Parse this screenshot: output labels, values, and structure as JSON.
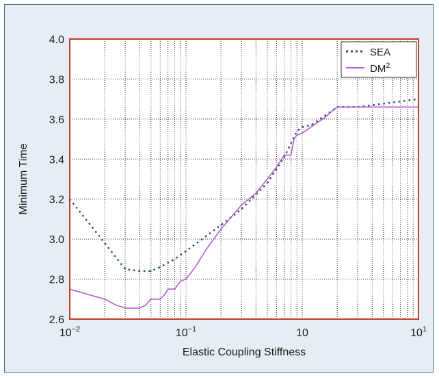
{
  "chart_data": {
    "type": "line",
    "xlabel": "Elastic Coupling Stiffness",
    "ylabel": "Minimum Time",
    "xscale": "log",
    "xlim": [
      0.01,
      10
    ],
    "ylim": [
      2.6,
      4.0
    ],
    "grid": true,
    "legend_position": "top-right",
    "x_ticks": [
      {
        "value": 0.01,
        "base": "10",
        "exp": "−2"
      },
      {
        "value": 0.1,
        "base": "10",
        "exp": "−1"
      },
      {
        "value": 1,
        "base": "10",
        "exp": ""
      },
      {
        "value": 10,
        "base": "10",
        "exp": "1"
      }
    ],
    "y_ticks": [
      "2.6",
      "2.8",
      "3.0",
      "3.2",
      "3.4",
      "3.6",
      "3.8",
      "4.0"
    ],
    "series": [
      {
        "name": "SEA",
        "style": "dotted",
        "color": "#2d4a6a",
        "points": [
          [
            0.01,
            3.2
          ],
          [
            0.02,
            2.98
          ],
          [
            0.03,
            2.85
          ],
          [
            0.04,
            2.84
          ],
          [
            0.05,
            2.84
          ],
          [
            0.06,
            2.86
          ],
          [
            0.08,
            2.9
          ],
          [
            0.1,
            2.94
          ],
          [
            0.2,
            3.07
          ],
          [
            0.3,
            3.15
          ],
          [
            0.5,
            3.28
          ],
          [
            0.7,
            3.41
          ],
          [
            0.9,
            3.54
          ],
          [
            1.0,
            3.56
          ],
          [
            1.2,
            3.57
          ],
          [
            2,
            3.66
          ],
          [
            3,
            3.66
          ],
          [
            10,
            3.7
          ]
        ]
      },
      {
        "name": "DM",
        "name_sup": "2",
        "style": "solid",
        "color": "#b25bcf",
        "points": [
          [
            0.01,
            2.75
          ],
          [
            0.015,
            2.72
          ],
          [
            0.02,
            2.7
          ],
          [
            0.025,
            2.67
          ],
          [
            0.03,
            2.655
          ],
          [
            0.04,
            2.655
          ],
          [
            0.045,
            2.67
          ],
          [
            0.05,
            2.7
          ],
          [
            0.06,
            2.7
          ],
          [
            0.065,
            2.72
          ],
          [
            0.07,
            2.75
          ],
          [
            0.08,
            2.75
          ],
          [
            0.09,
            2.79
          ],
          [
            0.1,
            2.8
          ],
          [
            0.12,
            2.86
          ],
          [
            0.15,
            2.95
          ],
          [
            0.2,
            3.05
          ],
          [
            0.3,
            3.17
          ],
          [
            0.4,
            3.23
          ],
          [
            0.5,
            3.3
          ],
          [
            0.6,
            3.36
          ],
          [
            0.7,
            3.42
          ],
          [
            0.8,
            3.42
          ],
          [
            0.85,
            3.5
          ],
          [
            0.9,
            3.52
          ],
          [
            1.0,
            3.53
          ],
          [
            1.5,
            3.6
          ],
          [
            2,
            3.66
          ],
          [
            10,
            3.66
          ]
        ]
      }
    ]
  }
}
